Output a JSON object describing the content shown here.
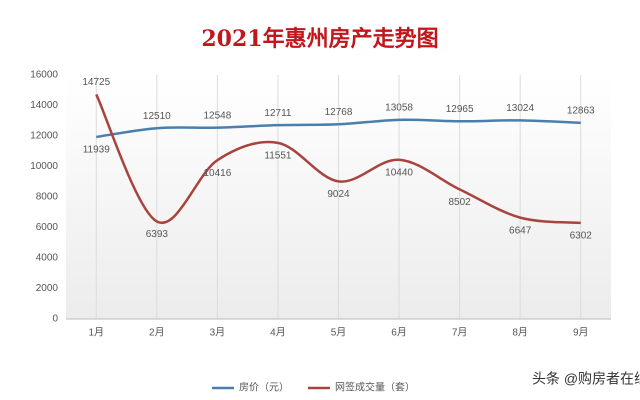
{
  "chart_data": {
    "type": "line",
    "title": "2021年惠州房产走势图",
    "categories": [
      "1月",
      "2月",
      "3月",
      "4月",
      "5月",
      "6月",
      "7月",
      "8月",
      "9月"
    ],
    "series": [
      {
        "name": "房价（元）",
        "color": "#4a7eab",
        "values": [
          11939,
          12510,
          12548,
          12711,
          12768,
          13058,
          12965,
          13024,
          12863
        ]
      },
      {
        "name": "网签成交量（套）",
        "color": "#a8433e",
        "values": [
          14725,
          6393,
          10416,
          11551,
          9024,
          10440,
          8502,
          6647,
          6302
        ]
      }
    ],
    "ylim": [
      0,
      16000
    ],
    "yticks": [
      0,
      2000,
      4000,
      6000,
      8000,
      10000,
      12000,
      14000,
      16000
    ],
    "grid": true,
    "legend": "bottom",
    "watermark": "头条 @购房者在线"
  }
}
